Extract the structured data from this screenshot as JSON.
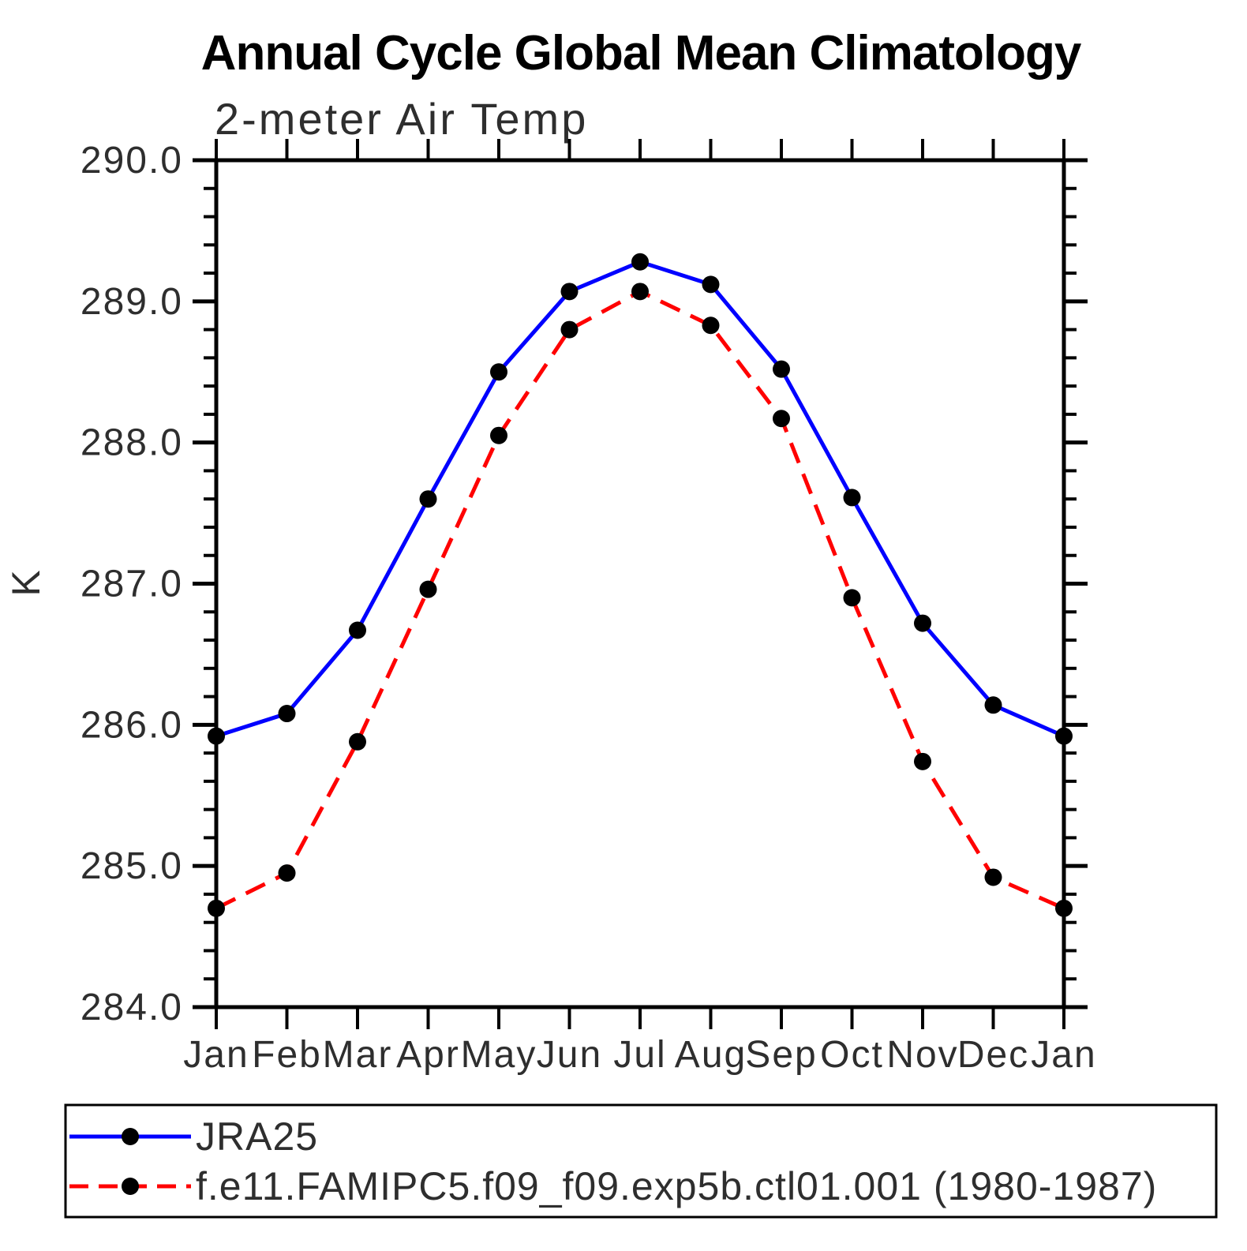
{
  "title": "Annual Cycle Global Mean Climatology",
  "subtitle": "2-meter Air Temp",
  "y_axis_label": "K",
  "legend": {
    "entries": [
      {
        "label": "JRA25",
        "color": "#0000ff",
        "line_style": "solid"
      },
      {
        "label": "f.e11.FAMIPC5.f09_f09.exp5b.ctl01.001 (1980-1987)",
        "color": "#ff0000",
        "line_style": "dashed"
      }
    ],
    "marker_color": "#000000"
  },
  "chart_data": {
    "type": "line",
    "categories": [
      "Jan",
      "Feb",
      "Mar",
      "Apr",
      "May",
      "Jun",
      "Jul",
      "Aug",
      "Sep",
      "Oct",
      "Nov",
      "Dec",
      "Jan"
    ],
    "series": [
      {
        "name": "JRA25",
        "color": "#0000ff",
        "line_style": "solid",
        "marker": "circle",
        "values": [
          285.92,
          286.08,
          286.67,
          287.6,
          288.5,
          289.07,
          289.28,
          289.12,
          288.52,
          287.61,
          286.72,
          286.14,
          285.92
        ]
      },
      {
        "name": "f.e11.FAMIPC5.f09_f09.exp5b.ctl01.001 (1980-1987)",
        "color": "#ff0000",
        "line_style": "dashed",
        "marker": "circle",
        "values": [
          284.7,
          284.95,
          285.88,
          286.96,
          288.05,
          288.8,
          289.07,
          288.83,
          288.17,
          286.9,
          285.74,
          284.92,
          284.7
        ]
      }
    ],
    "ylabel": "K",
    "xlabel": "",
    "ylim": [
      284.0,
      290.0
    ],
    "ytick_major_interval": 1.0,
    "ytick_minor_interval": 0.2,
    "ytick_labels": [
      "290.0",
      "289.0",
      "288.0",
      "287.0",
      "286.0",
      "285.0",
      "284.0"
    ],
    "grid": false,
    "legend_position": "bottom",
    "axis_color": "#000000",
    "marker_color": "#000000"
  }
}
